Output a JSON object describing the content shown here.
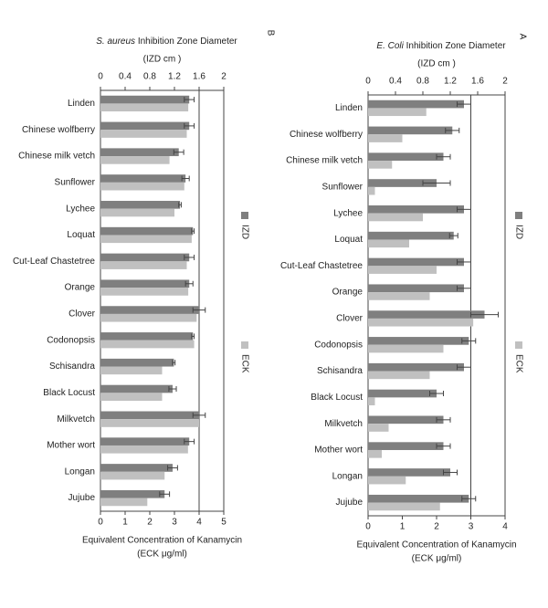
{
  "chart_data": [
    {
      "type": "bar",
      "orientation": "horizontal",
      "panel": "A",
      "title_italic": "E. Coli",
      "title": "Inhibition Zone Diameter",
      "title_line2": "(IZD cm )",
      "xlabel": "Equivalent Concentration of Kanamycin",
      "xlabel_line2": "(ECK μg/ml)",
      "categories": [
        "Linden",
        "Chinese wolfberry",
        "Chinese milk vetch",
        "Sunflower",
        "Lychee",
        "Loquat",
        "Cut-Leaf Chastetree",
        "Orange",
        "Clover",
        "Codonopsis",
        "Schisandra",
        "Black Locust",
        "Milkvetch",
        "Mother wort",
        "Longan",
        "Jujube"
      ],
      "series": [
        {
          "name": "IZD",
          "color": "#7f7f7f",
          "axis": "x2",
          "values": [
            1.4,
            1.23,
            1.1,
            1.0,
            1.4,
            1.25,
            1.4,
            1.4,
            1.7,
            1.47,
            1.4,
            1.0,
            1.1,
            1.1,
            1.2,
            1.47
          ],
          "errors": [
            0.1,
            0.1,
            0.1,
            0.2,
            0.1,
            0.06,
            0.1,
            0.1,
            0.2,
            0.1,
            0.1,
            0.1,
            0.1,
            0.1,
            0.1,
            0.1
          ]
        },
        {
          "name": "ECK",
          "color": "#c0c0c0",
          "values": [
            1.7,
            1.0,
            0.7,
            0.2,
            1.6,
            1.2,
            2.0,
            1.8,
            3.07,
            2.2,
            1.8,
            0.2,
            0.6,
            0.4,
            1.1,
            2.1
          ]
        }
      ],
      "xlim": [
        0,
        4
      ],
      "xticks": [
        0,
        1,
        2,
        3,
        4
      ],
      "x2lim": [
        0,
        2
      ],
      "x2ticks": [
        0,
        0.4,
        0.8,
        1.2,
        1.6,
        2
      ],
      "vline": 3
    },
    {
      "type": "bar",
      "orientation": "horizontal",
      "panel": "B",
      "title_italic": "S. aureus",
      "title": "Inhibition Zone Diameter",
      "title_line2": "(IZD cm )",
      "xlabel": "Equivalent Concentration of Kanamycin",
      "xlabel_line2": "(ECK μg/ml)",
      "categories": [
        "Linden",
        "Chinese wolfberry",
        "Chinese milk vetch",
        "Sunflower",
        "Lychee",
        "Loquat",
        "Cut-Leaf Chastetree",
        "Orange",
        "Clover",
        "Codonopsis",
        "Schisandra",
        "Black Locust",
        "Milkvetch",
        "Mother wort",
        "Longan",
        "Jujube"
      ],
      "series": [
        {
          "name": "IZD",
          "color": "#7f7f7f",
          "axis": "x2",
          "values": [
            1.44,
            1.44,
            1.27,
            1.38,
            1.29,
            1.5,
            1.44,
            1.44,
            1.6,
            1.5,
            1.19,
            1.17,
            1.6,
            1.44,
            1.17,
            1.04
          ],
          "errors": [
            0.08,
            0.08,
            0.08,
            0.06,
            0.02,
            0.02,
            0.08,
            0.06,
            0.1,
            0.02,
            0.02,
            0.06,
            0.1,
            0.08,
            0.08,
            0.08
          ]
        },
        {
          "name": "ECK",
          "color": "#c0c0c0",
          "values": [
            3.56,
            3.5,
            2.8,
            3.4,
            3.0,
            3.7,
            3.5,
            3.56,
            3.9,
            3.8,
            2.5,
            2.5,
            4.0,
            3.55,
            2.6,
            1.9
          ]
        }
      ],
      "xlim": [
        0,
        5
      ],
      "xticks": [
        0,
        1,
        2,
        3,
        4,
        5
      ],
      "x2lim": [
        0,
        2
      ],
      "x2ticks": [
        0,
        0.4,
        0.8,
        1.2,
        1.6,
        2
      ],
      "vline": 4
    }
  ]
}
